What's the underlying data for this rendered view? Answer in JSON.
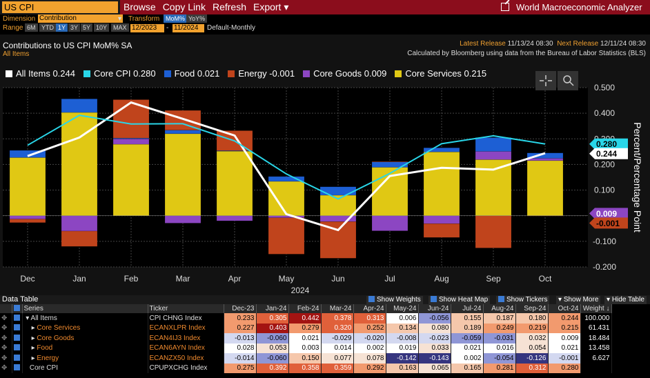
{
  "security": "US CPI",
  "menu": [
    "Browse",
    "Copy Link",
    "Refresh",
    "Export ▾"
  ],
  "app_title": "World Macroeconomic Analyzer",
  "controls": {
    "dimension_label": "Dimension",
    "dimension_value": "Contribution",
    "transform_label": "Transform",
    "transform_options": [
      "MoM%",
      "YoY%"
    ],
    "transform_selected": "MoM%",
    "range_label": "Range",
    "range_buttons": [
      "6M",
      "YTD",
      "1Y",
      "3Y",
      "5Y",
      "10Y",
      "MAX"
    ],
    "range_selected": "1Y",
    "start": "12/2023",
    "dash": "-",
    "end": "11/2024",
    "frequency": "Default-Monthly"
  },
  "chart_header": {
    "title": "Contributions to US CPI MoM% SA",
    "subtitle": "All Items",
    "latest_release_label": "Latest Release",
    "latest_release": "11/13/24 08:30",
    "next_release_label": "Next Release",
    "next_release": "12/11/24 08:30",
    "source": "Calculated by Bloomberg using data from the Bureau of Labor Statistics (BLS)"
  },
  "legend": [
    {
      "name": "All Items",
      "value": "0.244",
      "color": "#ffffff"
    },
    {
      "name": "Core CPI",
      "value": "0.280",
      "color": "#29d6e8"
    },
    {
      "name": "Food",
      "value": "0.021",
      "color": "#1d5fd4"
    },
    {
      "name": "Energy",
      "value": "-0.001",
      "color": "#c0441c"
    },
    {
      "name": "Core Goods",
      "value": "0.009",
      "color": "#8c46c2"
    },
    {
      "name": "Core Services",
      "value": "0.215",
      "color": "#e0c814"
    }
  ],
  "chart_data": {
    "type": "bar",
    "stacked": true,
    "categories": [
      "Dec",
      "Jan",
      "Feb",
      "Mar",
      "Apr",
      "May",
      "Jun",
      "Jul",
      "Aug",
      "Sep",
      "Oct"
    ],
    "year_label": "2024",
    "ylabel": "Percent/Percentage Point",
    "ylim": [
      -0.2,
      0.5
    ],
    "yticks": [
      "0.500",
      "0.400",
      "0.300",
      "0.200",
      "0.100",
      "0.000",
      "-0.100",
      "-0.200"
    ],
    "series": [
      {
        "name": "Core Services",
        "type": "bar",
        "color": "#e0c814",
        "values": [
          0.227,
          0.403,
          0.279,
          0.32,
          0.252,
          0.134,
          0.08,
          0.189,
          0.249,
          0.219,
          0.215
        ]
      },
      {
        "name": "Core Goods",
        "type": "bar",
        "color": "#8c46c2",
        "values": [
          -0.013,
          -0.06,
          0.021,
          -0.029,
          -0.02,
          -0.008,
          -0.023,
          -0.059,
          -0.031,
          0.032,
          0.009
        ]
      },
      {
        "name": "Food",
        "type": "bar",
        "color": "#1d5fd4",
        "values": [
          0.028,
          0.053,
          0.003,
          0.014,
          0.002,
          0.019,
          0.033,
          0.021,
          0.016,
          0.054,
          0.021
        ]
      },
      {
        "name": "Energy",
        "type": "bar",
        "color": "#c0441c",
        "values": [
          -0.014,
          -0.06,
          0.15,
          0.077,
          0.078,
          -0.142,
          -0.143,
          0.002,
          -0.054,
          -0.126,
          -0.001
        ]
      },
      {
        "name": "All Items",
        "type": "line",
        "color": "#ffffff",
        "values": [
          0.233,
          0.305,
          0.442,
          0.378,
          0.313,
          0.006,
          -0.056,
          0.155,
          0.187,
          0.18,
          0.244
        ]
      },
      {
        "name": "Core CPI",
        "type": "line",
        "color": "#29d6e8",
        "values": [
          0.275,
          0.392,
          0.358,
          0.359,
          0.292,
          0.163,
          0.065,
          0.165,
          0.281,
          0.312,
          0.28
        ]
      }
    ],
    "end_labels": [
      {
        "text": "0.280",
        "value": 0.28,
        "bg": "#29d6e8",
        "fg": "#000"
      },
      {
        "text": "0.244",
        "value": 0.244,
        "bg": "#ffffff",
        "fg": "#000"
      },
      {
        "text": "0.009",
        "value": 0.009,
        "bg": "#8c46c2",
        "fg": "#fff"
      },
      {
        "text": "-0.001",
        "value": -0.001,
        "bg": "#c0441c",
        "fg": "#000"
      }
    ]
  },
  "table": {
    "bar_title": "Data Table",
    "options": [
      "Show Weights",
      "Show Heat Map",
      "Show Tickers"
    ],
    "more": "Show More",
    "hide": "Hide Table",
    "headers": [
      "Series",
      "Ticker",
      "Dec-23",
      "Jan-24",
      "Feb-24",
      "Mar-24",
      "Apr-24",
      "May-24",
      "Jun-24",
      "Jul-24",
      "Aug-24",
      "Sep-24",
      "Oct-24",
      "Weight ↓"
    ],
    "rows": [
      {
        "series": "All Items",
        "ticker": "CPI CHNG Index",
        "values": [
          "0.233",
          "0.305",
          "0.442",
          "0.378",
          "0.313",
          "0.006",
          "-0.056",
          "0.155",
          "0.187",
          "0.180",
          "0.244"
        ],
        "weight": "100.000",
        "top": true
      },
      {
        "series": "Core Services",
        "ticker": "ECANXLPR Index",
        "values": [
          "0.227",
          "0.403",
          "0.279",
          "0.320",
          "0.252",
          "0.134",
          "0.080",
          "0.189",
          "0.249",
          "0.219",
          "0.215"
        ],
        "weight": "61.431"
      },
      {
        "series": "Core Goods",
        "ticker": "ECAN4IJ3 Index",
        "values": [
          "-0.013",
          "-0.060",
          "0.021",
          "-0.029",
          "-0.020",
          "-0.008",
          "-0.023",
          "-0.059",
          "-0.031",
          "0.032",
          "0.009"
        ],
        "weight": "18.484"
      },
      {
        "series": "Food",
        "ticker": "ECAN6AYN Index",
        "values": [
          "0.028",
          "0.053",
          "0.003",
          "0.014",
          "0.002",
          "0.019",
          "0.033",
          "0.021",
          "0.016",
          "0.054",
          "0.021"
        ],
        "weight": "13.458"
      },
      {
        "series": "Energy",
        "ticker": "ECANZX50 Index",
        "values": [
          "-0.014",
          "-0.060",
          "0.150",
          "0.077",
          "0.078",
          "-0.142",
          "-0.143",
          "0.002",
          "-0.054",
          "-0.126",
          "-0.001"
        ],
        "weight": "6.627"
      },
      {
        "series": "Core CPI",
        "ticker": "CPUPXCHG Index",
        "values": [
          "0.275",
          "0.392",
          "0.358",
          "0.359",
          "0.292",
          "0.163",
          "0.065",
          "0.165",
          "0.281",
          "0.312",
          "0.280"
        ],
        "weight": "",
        "plain": true
      }
    ]
  }
}
